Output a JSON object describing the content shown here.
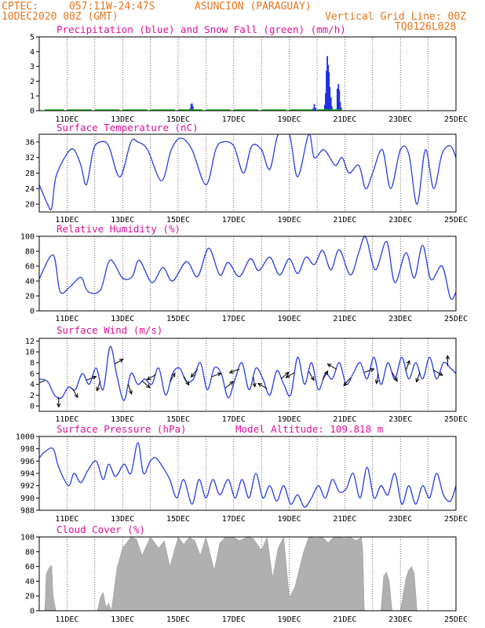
{
  "header": {
    "source": "CPTEC:",
    "coords": "057:11W-24:47S",
    "station": "ASUNCION (PARAGUAY)",
    "init_time": "10DEC2020 00Z (GMT)",
    "grid_note": "Vertical Grid Line: 00Z",
    "model_code": "TQ0126L028"
  },
  "time_axis": {
    "start_day": 10,
    "end_day": 25,
    "tick_labels": [
      "11DEC",
      "13DEC",
      "15DEC",
      "17DEC",
      "19DEC",
      "21DEC",
      "23DEC",
      "25DEC"
    ]
  },
  "colors": {
    "header": "#e8741c",
    "title": "#e0109a",
    "line": "#2a3ee0",
    "precip": "#1f2fe8",
    "snow": "#16b316",
    "wind_arrow": "#000000",
    "cloud": "#b0b0b0"
  },
  "chart_data": [
    {
      "type": "bar",
      "title": "Precipitation (blue) and Snow Fall (green) (mm/h)",
      "ylim": [
        0,
        5
      ],
      "yticks": [
        0,
        1,
        2,
        3,
        4,
        5
      ],
      "grid": true,
      "series": [
        {
          "name": "Precipitation",
          "color": "#1f2fe8",
          "points": [
            [
              15.43,
              0.15
            ],
            [
              15.47,
              0.45
            ],
            [
              15.5,
              0.5
            ],
            [
              15.53,
              0.3
            ],
            [
              15.57,
              0.1
            ],
            [
              19.85,
              0.15
            ],
            [
              19.9,
              0.45
            ],
            [
              19.95,
              0.2
            ],
            [
              20.28,
              0.4
            ],
            [
              20.31,
              1.2
            ],
            [
              20.34,
              2.7
            ],
            [
              20.37,
              3.7
            ],
            [
              20.4,
              3.1
            ],
            [
              20.43,
              2.6
            ],
            [
              20.46,
              1.6
            ],
            [
              20.5,
              0.9
            ],
            [
              20.53,
              0.3
            ],
            [
              20.73,
              1.5
            ],
            [
              20.77,
              1.8
            ],
            [
              20.8,
              1.4
            ],
            [
              20.83,
              0.6
            ],
            [
              20.87,
              0.2
            ]
          ]
        },
        {
          "name": "Snow Fall",
          "color": "#16b316",
          "points": [
            [
              10.2,
              0.04
            ],
            [
              11.0,
              0.04
            ],
            [
              12.0,
              0.04
            ],
            [
              13.0,
              0.04
            ],
            [
              14.0,
              0.04
            ],
            [
              15.0,
              0.04
            ],
            [
              16.0,
              0.04
            ],
            [
              17.0,
              0.04
            ],
            [
              18.0,
              0.04
            ],
            [
              19.0,
              0.04
            ],
            [
              20.0,
              0.04
            ],
            [
              21.0,
              0.04
            ]
          ]
        }
      ]
    },
    {
      "type": "line",
      "title": "Surface Temperature (nC)",
      "ylim": [
        18,
        38
      ],
      "yticks": [
        20,
        24,
        28,
        32,
        36
      ],
      "grid": true,
      "x": [
        10.0,
        10.3,
        10.45,
        10.6,
        11.0,
        11.25,
        11.5,
        11.7,
        11.95,
        12.2,
        12.5,
        12.9,
        13.3,
        13.55,
        13.9,
        14.4,
        14.75,
        15.1,
        15.5,
        16.0,
        16.35,
        16.6,
        17.0,
        17.35,
        17.65,
        18.0,
        18.3,
        18.6,
        19.0,
        19.3,
        19.7,
        19.9,
        20.25,
        20.65,
        20.9,
        21.15,
        21.5,
        21.75,
        22.0,
        22.35,
        22.65,
        23.0,
        23.3,
        23.6,
        23.9,
        24.2,
        24.5,
        24.8,
        25.0
      ],
      "values": [
        25,
        20,
        19,
        27,
        33,
        34,
        30,
        25,
        34,
        36,
        35,
        27,
        36,
        36,
        34,
        26,
        34,
        37,
        34,
        25,
        34,
        36,
        35,
        28,
        35,
        34,
        29,
        38,
        38,
        27,
        38,
        32,
        34,
        30,
        32,
        28,
        30,
        24,
        28,
        34,
        24,
        34,
        33,
        20,
        34,
        24,
        33,
        35,
        32
      ]
    },
    {
      "type": "line",
      "title": "Relative Humidity (%)",
      "ylim": [
        0,
        100
      ],
      "yticks": [
        0,
        20,
        40,
        60,
        80,
        100
      ],
      "grid": true,
      "x": [
        10.0,
        10.5,
        10.75,
        11.1,
        11.5,
        11.75,
        12.2,
        12.55,
        13.0,
        13.35,
        13.6,
        14.05,
        14.45,
        14.8,
        15.3,
        15.7,
        16.1,
        16.5,
        16.8,
        17.2,
        17.6,
        17.9,
        18.3,
        18.65,
        19.0,
        19.3,
        19.6,
        19.9,
        20.2,
        20.5,
        20.8,
        21.2,
        21.5,
        21.75,
        22.1,
        22.5,
        22.8,
        23.2,
        23.5,
        23.8,
        24.1,
        24.5,
        24.8,
        25.0
      ],
      "values": [
        43,
        75,
        26,
        32,
        45,
        26,
        28,
        68,
        44,
        46,
        68,
        38,
        58,
        40,
        66,
        46,
        84,
        48,
        65,
        46,
        70,
        54,
        72,
        48,
        70,
        50,
        72,
        62,
        81,
        55,
        82,
        48,
        78,
        99,
        55,
        93,
        38,
        78,
        44,
        88,
        42,
        60,
        17,
        25
      ]
    },
    {
      "type": "line",
      "title": "Surface Wind (m/s)",
      "ylim": [
        -1,
        12.5
      ],
      "yticks": [
        0,
        2,
        4,
        6,
        8,
        10,
        12
      ],
      "grid": true,
      "x": [
        10.0,
        10.3,
        10.55,
        10.8,
        11.05,
        11.3,
        11.55,
        11.8,
        12.05,
        12.3,
        12.55,
        12.8,
        13.05,
        13.3,
        13.55,
        13.8,
        14.05,
        14.3,
        14.55,
        14.8,
        15.05,
        15.3,
        15.55,
        15.8,
        16.05,
        16.3,
        16.55,
        16.8,
        17.05,
        17.3,
        17.55,
        17.8,
        18.05,
        18.3,
        18.55,
        18.8,
        19.05,
        19.3,
        19.55,
        19.8,
        20.05,
        20.3,
        20.55,
        20.8,
        21.05,
        21.3,
        21.55,
        21.8,
        22.05,
        22.3,
        22.55,
        22.8,
        23.05,
        23.3,
        23.55,
        23.8,
        24.05,
        24.3,
        24.55,
        24.8,
        25.0
      ],
      "values": [
        5,
        4.5,
        2,
        1.5,
        3.5,
        3,
        6,
        4,
        7,
        3,
        11,
        5.5,
        1,
        6,
        4,
        5,
        4,
        7,
        2,
        6,
        7,
        4.5,
        5,
        8,
        3,
        7,
        6,
        1.5,
        5,
        8,
        3,
        7,
        5,
        2,
        6.5,
        4,
        2,
        9,
        4,
        8,
        3,
        6,
        5,
        8,
        4,
        6,
        8,
        5,
        9,
        4,
        8,
        5,
        9,
        5,
        8,
        5,
        9,
        5,
        8,
        7,
        6
      ]
    },
    {
      "type": "line",
      "title": "Surface Pressure (hPa)",
      "annotation": "Model Altitude: 109.818 m",
      "ylim": [
        988,
        1000
      ],
      "yticks": [
        988,
        990,
        992,
        994,
        996,
        998,
        1000
      ],
      "grid": true,
      "x": [
        10.0,
        10.2,
        10.5,
        10.7,
        11.05,
        11.25,
        11.5,
        11.75,
        12.05,
        12.3,
        12.5,
        12.75,
        13.05,
        13.3,
        13.55,
        13.75,
        14.0,
        14.2,
        14.45,
        14.7,
        14.95,
        15.2,
        15.5,
        15.75,
        16.0,
        16.25,
        16.5,
        16.8,
        17.05,
        17.3,
        17.55,
        17.8,
        18.05,
        18.3,
        18.55,
        18.8,
        19.05,
        19.3,
        19.55,
        19.8,
        20.05,
        20.3,
        20.55,
        20.8,
        21.05,
        21.3,
        21.55,
        21.8,
        22.05,
        22.3,
        22.55,
        22.8,
        23.05,
        23.3,
        23.55,
        23.8,
        24.05,
        24.3,
        24.55,
        24.8,
        25.0
      ],
      "values": [
        996.5,
        997.5,
        998,
        995,
        992,
        994,
        992.5,
        994.5,
        996,
        993,
        995.5,
        993.5,
        995.5,
        994,
        999,
        994,
        996,
        996.5,
        995,
        993,
        990,
        993,
        989,
        993,
        990,
        993,
        990.5,
        993,
        990,
        993,
        990,
        994,
        990,
        992,
        989.5,
        992,
        989,
        990.5,
        988.5,
        990,
        992,
        990,
        993,
        991,
        991.5,
        994,
        990,
        995,
        990,
        992,
        990.5,
        994,
        989,
        992,
        989,
        992,
        990,
        994,
        990.5,
        989.5,
        992
      ]
    },
    {
      "type": "area",
      "title": "Cloud Cover (%)",
      "ylim": [
        0,
        100
      ],
      "yticks": [
        0,
        20,
        40,
        60,
        80,
        100
      ],
      "grid": true,
      "x": [
        10.0,
        10.2,
        10.25,
        10.35,
        10.45,
        10.5,
        10.6,
        12.1,
        12.2,
        12.3,
        12.4,
        12.5,
        12.6,
        12.8,
        13.0,
        13.3,
        13.5,
        13.7,
        14.0,
        14.3,
        14.5,
        14.7,
        15.0,
        15.2,
        15.4,
        15.6,
        15.8,
        16.0,
        16.3,
        16.5,
        16.7,
        17.0,
        17.2,
        17.5,
        17.7,
        18.0,
        18.2,
        18.4,
        18.6,
        18.8,
        19.0,
        19.2,
        19.5,
        19.7,
        20.0,
        20.2,
        20.4,
        20.6,
        20.8,
        21.0,
        21.2,
        21.4,
        21.6,
        21.65,
        21.7,
        22.0,
        22.3,
        22.4,
        22.5,
        22.6,
        22.7,
        23.0,
        23.2,
        23.3,
        23.4,
        23.5,
        23.6,
        23.7,
        24.0,
        25.0
      ],
      "values": [
        0,
        0,
        50,
        58,
        62,
        20,
        0,
        0,
        18,
        25,
        5,
        10,
        0,
        58,
        85,
        100,
        97,
        75,
        100,
        85,
        95,
        60,
        100,
        90,
        100,
        95,
        75,
        100,
        55,
        92,
        100,
        100,
        95,
        100,
        98,
        82,
        100,
        45,
        85,
        100,
        18,
        32,
        78,
        100,
        98,
        100,
        92,
        100,
        100,
        98,
        100,
        95,
        100,
        80,
        0,
        0,
        0,
        48,
        52,
        40,
        0,
        0,
        45,
        55,
        60,
        50,
        0,
        0,
        0,
        0
      ]
    }
  ]
}
